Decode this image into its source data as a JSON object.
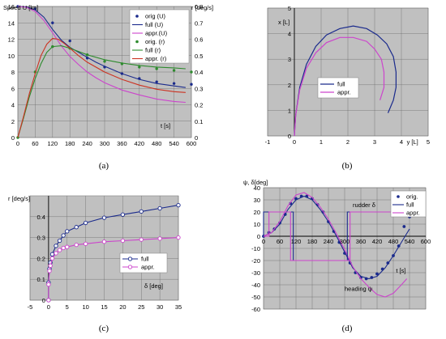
{
  "chart_data": [
    {
      "id": "a",
      "panel_label": "(a)",
      "type": "line",
      "title": "",
      "ylabel_left": "Speed U [kn]",
      "ylabel_right": "r [deg/s]",
      "xlabel": "t [s]",
      "xlim": [
        0,
        600
      ],
      "ylim_left": [
        0,
        16
      ],
      "ylim_right": [
        0,
        0.8
      ],
      "xticks": [
        0,
        60,
        120,
        180,
        240,
        300,
        360,
        420,
        480,
        540,
        600
      ],
      "yticks_left": [
        0,
        2,
        4,
        6,
        8,
        10,
        12,
        14,
        16
      ],
      "yticks_right": [
        0,
        0.1,
        0.2,
        0.3,
        0.4,
        0.5,
        0.6,
        0.7,
        0.8
      ],
      "grid": true,
      "legend_position": "top-right",
      "series": [
        {
          "name": "orig (U)",
          "axis": "left",
          "style": "points",
          "color": "#1a2a8c",
          "x": [
            0,
            60,
            120,
            180,
            240,
            300,
            360,
            420,
            480,
            540,
            600
          ],
          "y": [
            16,
            15.7,
            14,
            11.8,
            9.7,
            8.6,
            7.8,
            7.2,
            6.8,
            6.6,
            6.5
          ]
        },
        {
          "name": "full (U)",
          "axis": "left",
          "style": "line",
          "color": "#1a2a8c",
          "x": [
            0,
            30,
            60,
            90,
            120,
            150,
            180,
            210,
            240,
            270,
            300,
            360,
            420,
            480,
            540,
            580
          ],
          "y": [
            16,
            15.95,
            15.6,
            14.7,
            13.2,
            11.9,
            11.0,
            10.4,
            9.8,
            9.2,
            8.7,
            7.8,
            7.1,
            6.6,
            6.3,
            6.1
          ]
        },
        {
          "name": "appr.(U)",
          "axis": "left",
          "style": "line",
          "color": "#cc44cc",
          "x": [
            0,
            30,
            60,
            90,
            120,
            150,
            180,
            210,
            240,
            270,
            300,
            360,
            420,
            480,
            540,
            580
          ],
          "y": [
            16,
            15.9,
            15.4,
            14.3,
            12.8,
            11.2,
            9.9,
            8.9,
            8.0,
            7.3,
            6.7,
            5.8,
            5.2,
            4.7,
            4.4,
            4.3
          ]
        },
        {
          "name": "orig. (r)",
          "axis": "right",
          "style": "points",
          "color": "#2e8b2e",
          "x": [
            0,
            60,
            120,
            180,
            240,
            300,
            360,
            420,
            480,
            540,
            600
          ],
          "y": [
            0,
            0.4,
            0.555,
            0.545,
            0.505,
            0.465,
            0.45,
            0.43,
            0.42,
            0.41,
            0.4
          ]
        },
        {
          "name": "full (r)",
          "axis": "right",
          "style": "line",
          "color": "#2e8b2e",
          "x": [
            0,
            20,
            40,
            60,
            80,
            100,
            120,
            150,
            180,
            210,
            240,
            300,
            360,
            420,
            480,
            540,
            580
          ],
          "y": [
            0,
            0.12,
            0.25,
            0.36,
            0.45,
            0.52,
            0.555,
            0.56,
            0.545,
            0.525,
            0.505,
            0.475,
            0.455,
            0.44,
            0.43,
            0.425,
            0.42
          ]
        },
        {
          "name": "appr. (r)",
          "axis": "right",
          "style": "line",
          "color": "#cc3322",
          "x": [
            0,
            20,
            40,
            60,
            80,
            100,
            120,
            140,
            160,
            180,
            210,
            240,
            300,
            360,
            420,
            480,
            540,
            580
          ],
          "y": [
            0,
            0.13,
            0.27,
            0.39,
            0.5,
            0.57,
            0.605,
            0.6,
            0.575,
            0.545,
            0.5,
            0.46,
            0.4,
            0.355,
            0.32,
            0.295,
            0.28,
            0.275
          ]
        }
      ]
    },
    {
      "id": "b",
      "panel_label": "(b)",
      "type": "line",
      "title": "",
      "xlabel": "y [L]",
      "ylabel": "x [L]",
      "xlim": [
        -1,
        5
      ],
      "ylim": [
        0,
        5
      ],
      "xticks": [
        -1,
        0,
        1,
        2,
        3,
        4,
        5
      ],
      "yticks": [
        0,
        1,
        2,
        3,
        4,
        5
      ],
      "grid": true,
      "legend_position": "bottom-right",
      "series": [
        {
          "name": "full",
          "color": "#1a2a8c",
          "x": [
            0,
            0.05,
            0.2,
            0.45,
            0.8,
            1.2,
            1.7,
            2.2,
            2.7,
            3.1,
            3.45,
            3.7,
            3.8,
            3.8,
            3.7,
            3.5
          ],
          "y": [
            0,
            0.8,
            1.9,
            2.8,
            3.5,
            3.95,
            4.2,
            4.3,
            4.2,
            3.95,
            3.6,
            3.1,
            2.5,
            1.9,
            1.4,
            0.9
          ]
        },
        {
          "name": "appr.",
          "color": "#cc44cc",
          "x": [
            0,
            0.05,
            0.2,
            0.45,
            0.8,
            1.2,
            1.7,
            2.2,
            2.7,
            3.0,
            3.25,
            3.35,
            3.35,
            3.2
          ],
          "y": [
            0,
            0.8,
            1.8,
            2.65,
            3.25,
            3.65,
            3.85,
            3.85,
            3.7,
            3.4,
            3.0,
            2.5,
            1.9,
            1.4
          ]
        }
      ]
    },
    {
      "id": "c",
      "panel_label": "(c)",
      "type": "line",
      "title": "",
      "ylabel": "r [deg/s]",
      "xlabel": "δ [deg]",
      "xlim": [
        -5,
        35
      ],
      "ylim": [
        0,
        0.5
      ],
      "xticks": [
        -5,
        0,
        5,
        10,
        15,
        20,
        25,
        30,
        35
      ],
      "yticks": [
        0,
        0.1,
        0.2,
        0.3,
        0.4
      ],
      "grid": true,
      "legend_position": "bottom-right",
      "series": [
        {
          "name": "full",
          "color": "#1a2a8c",
          "x": [
            0,
            0,
            0.25,
            0.5,
            1,
            2,
            3,
            4,
            5,
            7.5,
            10,
            15,
            20,
            25,
            30,
            35
          ],
          "y": [
            0,
            0.085,
            0.15,
            0.18,
            0.22,
            0.26,
            0.285,
            0.31,
            0.33,
            0.35,
            0.37,
            0.395,
            0.41,
            0.425,
            0.44,
            0.455
          ]
        },
        {
          "name": "appr.",
          "color": "#cc44cc",
          "x": [
            0,
            0,
            0.25,
            0.5,
            1,
            2,
            3,
            4,
            5,
            7.5,
            10,
            15,
            20,
            25,
            30,
            35
          ],
          "y": [
            0,
            0.075,
            0.14,
            0.165,
            0.2,
            0.225,
            0.24,
            0.25,
            0.255,
            0.265,
            0.27,
            0.28,
            0.285,
            0.29,
            0.295,
            0.3
          ]
        }
      ]
    },
    {
      "id": "d",
      "panel_label": "(d)",
      "type": "line",
      "title": "",
      "ylabel": "ψ, δ[deg]",
      "xlabel": "t  [s]",
      "xlim": [
        0,
        600
      ],
      "ylim": [
        -60,
        40
      ],
      "xticks": [
        0,
        60,
        120,
        180,
        240,
        300,
        360,
        420,
        480,
        540,
        600
      ],
      "yticks": [
        -60,
        -50,
        -40,
        -30,
        -20,
        -10,
        0,
        10,
        20,
        30,
        40
      ],
      "grid": true,
      "legend_position": "top-right",
      "annotations": [
        "rudder δ",
        "heading ψ"
      ],
      "series": [
        {
          "name": "orig.",
          "style": "points",
          "color": "#1a2a8c",
          "x": [
            0,
            20,
            40,
            60,
            80,
            100,
            120,
            140,
            160,
            180,
            200,
            220,
            240,
            260,
            280,
            300,
            320,
            340,
            360,
            380,
            400,
            420,
            440,
            460,
            480,
            500,
            520,
            540
          ],
          "y": [
            0,
            3,
            6,
            11,
            18,
            27,
            31,
            33,
            33,
            31,
            26,
            20,
            12,
            4,
            -5,
            -14,
            -22,
            -30,
            -34,
            -35,
            -34,
            -31,
            -27,
            -22,
            -16,
            -8,
            8,
            16
          ]
        },
        {
          "name": "full",
          "style": "line",
          "color": "#1a2a8c",
          "x": [
            0,
            30,
            60,
            90,
            120,
            150,
            180,
            210,
            240,
            270,
            300,
            330,
            360,
            390,
            420,
            450,
            480,
            510,
            540
          ],
          "y": [
            0,
            3,
            10,
            22,
            30,
            33,
            30,
            22,
            12,
            0,
            -13,
            -26,
            -33,
            -35,
            -33,
            -26,
            -16,
            -5,
            6
          ]
        },
        {
          "name": "appr.",
          "style": "line",
          "color": "#cc44cc",
          "x": [
            0,
            30,
            60,
            90,
            120,
            150,
            180,
            210,
            240,
            270,
            300,
            330,
            360,
            390,
            420,
            450,
            480,
            510,
            530
          ],
          "y": [
            0,
            3,
            12,
            25,
            34,
            36,
            32,
            24,
            14,
            2,
            -11,
            -25,
            -35,
            -42,
            -48,
            -50,
            -47,
            -40,
            -35
          ]
        },
        {
          "name": "rudder (full)",
          "style": "line",
          "color": "#1a2a8c",
          "legend": false,
          "x": [
            0,
            0,
            20,
            110,
            110,
            310,
            310,
            510
          ],
          "y": [
            0,
            20,
            20,
            20,
            -20,
            -20,
            20,
            20
          ]
        },
        {
          "name": "rudder (appr.)",
          "style": "line",
          "color": "#cc44cc",
          "legend": false,
          "x": [
            0,
            20,
            20,
            100,
            100,
            320,
            320,
            510
          ],
          "y": [
            0,
            0,
            20,
            20,
            -20,
            -20,
            20,
            20
          ]
        }
      ]
    }
  ]
}
